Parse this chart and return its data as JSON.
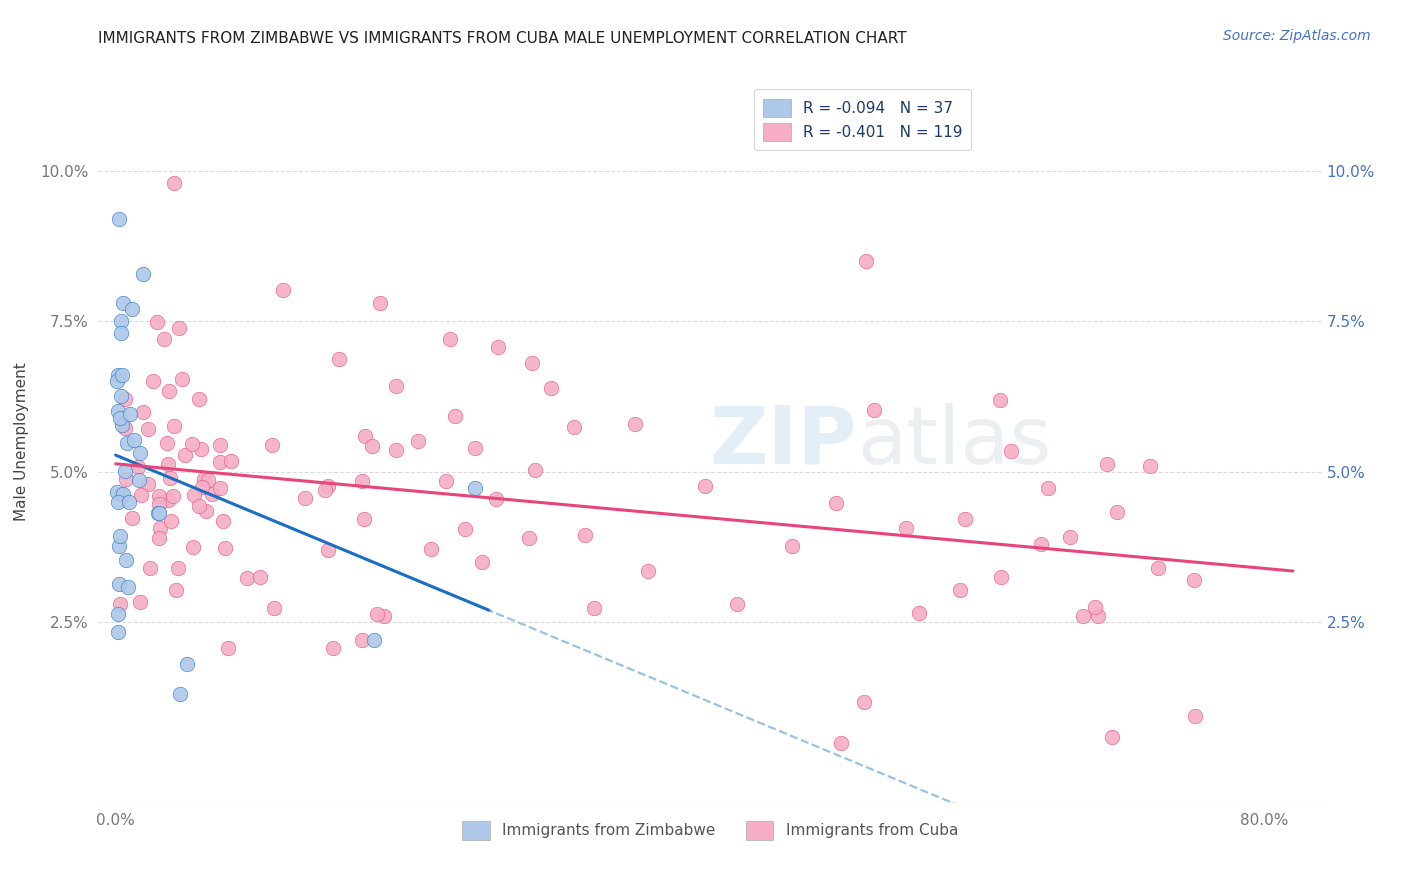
{
  "title": "IMMIGRANTS FROM ZIMBABWE VS IMMIGRANTS FROM CUBA MALE UNEMPLOYMENT CORRELATION CHART",
  "source": "Source: ZipAtlas.com",
  "ylabel": "Male Unemployment",
  "r_zimbabwe": -0.094,
  "n_zimbabwe": 37,
  "r_cuba": -0.401,
  "n_cuba": 119,
  "color_zimbabwe": "#adc8e8",
  "color_cuba": "#f5aec5",
  "line_color_zimbabwe": "#1a6fc4",
  "line_color_cuba": "#e8457a",
  "dashed_color": "#7fb3d9",
  "watermark_color": "#c8dff0",
  "yticks": [
    0.025,
    0.05,
    0.075,
    0.1
  ],
  "ytick_labels_left": [
    "2.5%",
    "5.0%",
    "7.5%",
    "10.0%"
  ],
  "ytick_labels_right": [
    "2.5%",
    "5.0%",
    "7.5%",
    "10.0%"
  ],
  "xlim": [
    -0.012,
    0.84
  ],
  "ylim": [
    -0.005,
    0.115
  ],
  "zim_intercept": 0.054,
  "zim_slope": -0.04,
  "cuba_intercept": 0.056,
  "cuba_slope": -0.038,
  "dash_intercept": 0.054,
  "dash_slope": -0.052
}
